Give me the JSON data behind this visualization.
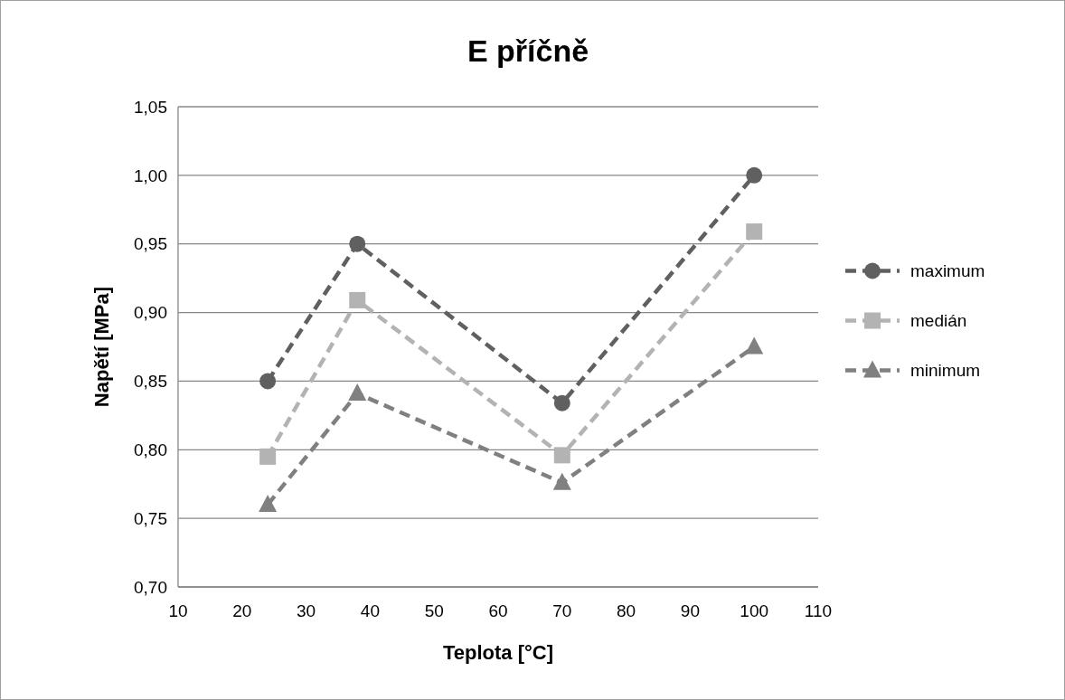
{
  "chart_data": {
    "type": "line",
    "title": "E příčně",
    "xlabel": "Teplota  [°C]",
    "ylabel": "Napětí  [MPa]",
    "x": [
      24,
      38,
      70,
      100
    ],
    "series": [
      {
        "name": "maximum",
        "color": "#606060",
        "values": [
          0.85,
          0.95,
          0.834,
          1.0
        ],
        "marker": "circle"
      },
      {
        "name": "medián",
        "color": "#b3b3b3",
        "values": [
          0.795,
          0.909,
          0.796,
          0.959
        ],
        "marker": "square"
      },
      {
        "name": "minimum",
        "color": "#808080",
        "values": [
          0.76,
          0.841,
          0.776,
          0.875
        ],
        "marker": "triangle"
      }
    ],
    "xlim": [
      10,
      110
    ],
    "xticks": [
      10,
      20,
      30,
      40,
      50,
      60,
      70,
      80,
      90,
      100,
      110
    ],
    "ylim": [
      0.7,
      1.05
    ],
    "yticks": [
      {
        "value": 0.7,
        "label": "0,70"
      },
      {
        "value": 0.75,
        "label": "0,75"
      },
      {
        "value": 0.8,
        "label": "0,80"
      },
      {
        "value": 0.85,
        "label": "0,85"
      },
      {
        "value": 0.9,
        "label": "0,90"
      },
      {
        "value": 0.95,
        "label": "0,95"
      },
      {
        "value": 1.0,
        "label": "1,00"
      },
      {
        "value": 1.05,
        "label": "1,05"
      }
    ],
    "grid": "y",
    "legend": "right",
    "line_style": "dashed"
  }
}
